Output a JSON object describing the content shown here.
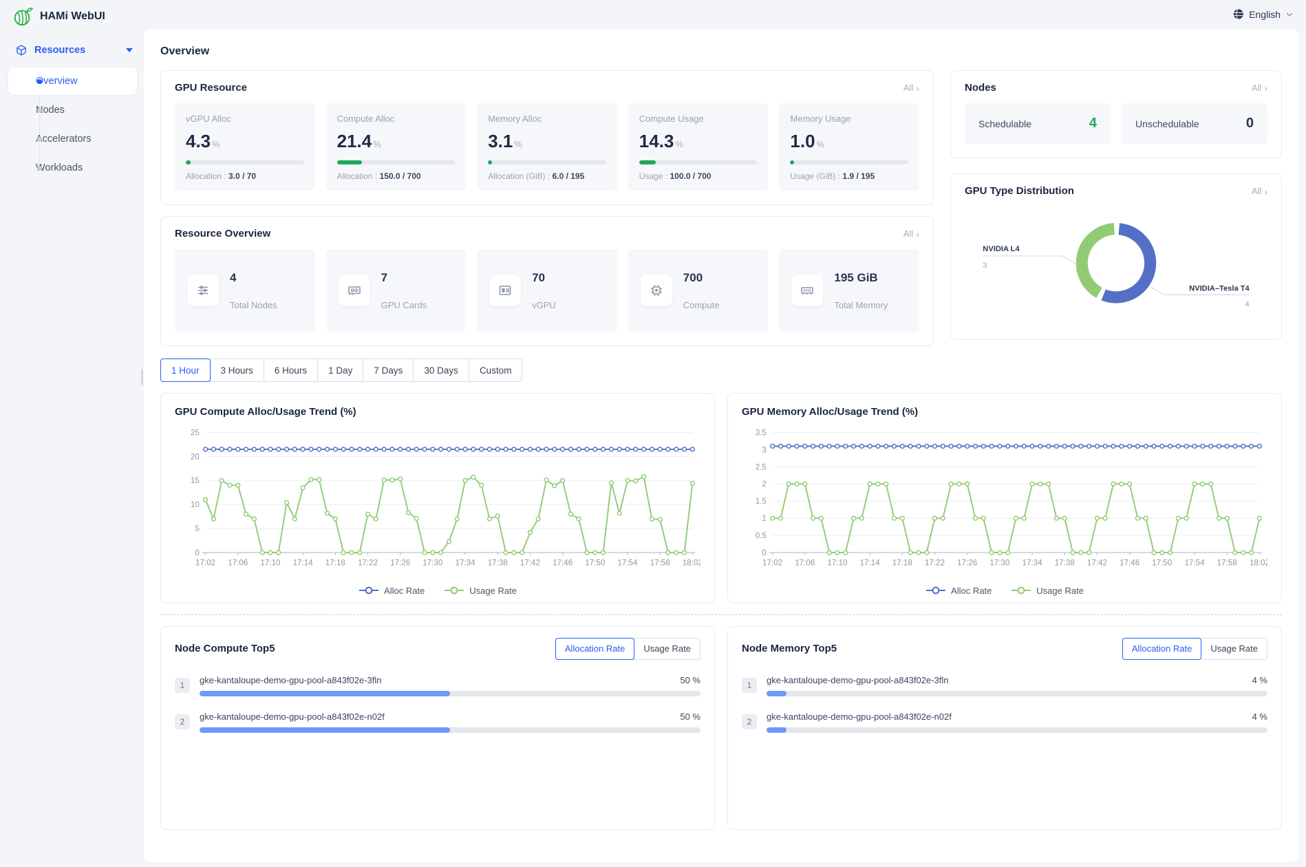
{
  "app": {
    "title": "HAMi WebUI",
    "language": "English"
  },
  "sidebar": {
    "section_label": "Resources",
    "items": [
      {
        "label": "Overview",
        "active": true
      },
      {
        "label": "Nodes",
        "active": false
      },
      {
        "label": "Accelerators",
        "active": false
      },
      {
        "label": "Workloads",
        "active": false
      }
    ]
  },
  "page": {
    "title": "Overview",
    "all_label": "All"
  },
  "gpu_resource": {
    "title": "GPU Resource",
    "cards": [
      {
        "label": "vGPU Alloc",
        "value": "4.3",
        "unit": "%",
        "percent": 4.3,
        "detail_label": "Allocation",
        "detail_value": "3.0 / 70"
      },
      {
        "label": "Compute Alloc",
        "value": "21.4",
        "unit": "%",
        "percent": 21.4,
        "detail_label": "Allocation",
        "detail_value": "150.0 / 700"
      },
      {
        "label": "Memory Alloc",
        "value": "3.1",
        "unit": "%",
        "percent": 3.1,
        "detail_label": "Allocation (GiB)",
        "detail_value": "6.0 / 195"
      },
      {
        "label": "Compute Usage",
        "value": "14.3",
        "unit": "%",
        "percent": 14.3,
        "detail_label": "Usage",
        "detail_value": "100.0 / 700"
      },
      {
        "label": "Memory Usage",
        "value": "1.0",
        "unit": "%",
        "percent": 1.0,
        "detail_label": "Usage (GiB)",
        "detail_value": "1.9 / 195"
      }
    ]
  },
  "nodes_panel": {
    "title": "Nodes",
    "tiles": [
      {
        "label": "Schedulable",
        "value": "4",
        "good": true
      },
      {
        "label": "Unschedulable",
        "value": "0",
        "good": false
      }
    ]
  },
  "resource_overview": {
    "title": "Resource Overview",
    "stats": [
      {
        "value": "4",
        "label": "Total Nodes",
        "icon": "nodes-icon"
      },
      {
        "value": "7",
        "label": "GPU Cards",
        "icon": "gpu-card-icon"
      },
      {
        "value": "70",
        "label": "vGPU",
        "icon": "vgpu-icon"
      },
      {
        "value": "700",
        "label": "Compute",
        "icon": "compute-icon"
      },
      {
        "value": "195 GiB",
        "label": "Total Memory",
        "icon": "memory-icon"
      }
    ]
  },
  "time_tabs": [
    {
      "label": "1 Hour",
      "active": true
    },
    {
      "label": "3 Hours",
      "active": false
    },
    {
      "label": "6 Hours",
      "active": false
    },
    {
      "label": "1 Day",
      "active": false
    },
    {
      "label": "7 Days",
      "active": false
    },
    {
      "label": "30 Days",
      "active": false
    },
    {
      "label": "Custom",
      "active": false
    }
  ],
  "top5": {
    "toggle": [
      "Allocation Rate",
      "Usage Rate"
    ],
    "active_toggle": 0,
    "panels": [
      {
        "title": "Node Compute Top5",
        "rows": [
          {
            "rank": "1",
            "name": "gke-kantaloupe-demo-gpu-pool-a843f02e-3fln",
            "percent_label": "50 %",
            "percent": 50
          },
          {
            "rank": "2",
            "name": "gke-kantaloupe-demo-gpu-pool-a843f02e-n02f",
            "percent_label": "50 %",
            "percent": 50
          }
        ]
      },
      {
        "title": "Node Memory Top5",
        "rows": [
          {
            "rank": "1",
            "name": "gke-kantaloupe-demo-gpu-pool-a843f02e-3fln",
            "percent_label": "4 %",
            "percent": 4
          },
          {
            "rank": "2",
            "name": "gke-kantaloupe-demo-gpu-pool-a843f02e-n02f",
            "percent_label": "4 %",
            "percent": 4
          }
        ]
      }
    ]
  },
  "chart_data": [
    {
      "type": "pie",
      "donut": true,
      "title": "GPU Type Distribution",
      "labels": [
        "NVIDIA L4",
        "NVIDIA–Tesla T4"
      ],
      "values": [
        3,
        4
      ],
      "colors": [
        "#91cc75",
        "#5470c6"
      ],
      "legend_position": "none"
    },
    {
      "type": "line",
      "title": "GPU Compute Alloc/Usage Trend (%)",
      "ylim": [
        0,
        25
      ],
      "yticks": [
        0,
        5,
        10,
        15,
        20,
        25
      ],
      "grid": true,
      "legend_position": "bottom",
      "x_label_every": 4,
      "x": [
        "17:02",
        "17:03",
        "17:04",
        "17:05",
        "17:06",
        "17:07",
        "17:08",
        "17:09",
        "17:10",
        "17:11",
        "17:12",
        "17:13",
        "17:14",
        "17:15",
        "17:16",
        "17:17",
        "17:18",
        "17:19",
        "17:20",
        "17:21",
        "17:22",
        "17:23",
        "17:24",
        "17:25",
        "17:26",
        "17:27",
        "17:28",
        "17:29",
        "17:30",
        "17:31",
        "17:32",
        "17:33",
        "17:34",
        "17:35",
        "17:36",
        "17:37",
        "17:38",
        "17:39",
        "17:40",
        "17:41",
        "17:42",
        "17:43",
        "17:44",
        "17:45",
        "17:46",
        "17:47",
        "17:48",
        "17:49",
        "17:50",
        "17:51",
        "17:52",
        "17:53",
        "17:54",
        "17:55",
        "17:56",
        "17:57",
        "17:58",
        "17:59",
        "18:00",
        "18:01",
        "18:02"
      ],
      "series": [
        {
          "name": "Alloc Rate",
          "color": "#5470c6",
          "constant": 21.5
        },
        {
          "name": "Usage Rate",
          "color": "#91cc75",
          "values": [
            11,
            7,
            15,
            14,
            14,
            8,
            7,
            0,
            0,
            0,
            10.4,
            7,
            13.5,
            15.2,
            15.2,
            8.2,
            7,
            0,
            0,
            0,
            8,
            7,
            15.1,
            15.1,
            15.3,
            8.3,
            7.1,
            0,
            0,
            0,
            2.3,
            7,
            15,
            15.7,
            14,
            7,
            7.6,
            0,
            0,
            0,
            4.2,
            7,
            15.1,
            13.9,
            15,
            8,
            7,
            0,
            0,
            0,
            14.5,
            8.2,
            15,
            14.9,
            15.8,
            7,
            6.9,
            0,
            0,
            0,
            14.4
          ]
        }
      ]
    },
    {
      "type": "line",
      "title": "GPU Memory Alloc/Usage Trend (%)",
      "ylim": [
        0,
        3.5
      ],
      "yticks": [
        0,
        0.5,
        1,
        1.5,
        2,
        2.5,
        3,
        3.5
      ],
      "grid": true,
      "legend_position": "bottom",
      "x_label_every": 4,
      "x": [
        "17:02",
        "17:03",
        "17:04",
        "17:05",
        "17:06",
        "17:07",
        "17:08",
        "17:09",
        "17:10",
        "17:11",
        "17:12",
        "17:13",
        "17:14",
        "17:15",
        "17:16",
        "17:17",
        "17:18",
        "17:19",
        "17:20",
        "17:21",
        "17:22",
        "17:23",
        "17:24",
        "17:25",
        "17:26",
        "17:27",
        "17:28",
        "17:29",
        "17:30",
        "17:31",
        "17:32",
        "17:33",
        "17:34",
        "17:35",
        "17:36",
        "17:37",
        "17:38",
        "17:39",
        "17:40",
        "17:41",
        "17:42",
        "17:43",
        "17:44",
        "17:45",
        "17:46",
        "17:47",
        "17:48",
        "17:49",
        "17:50",
        "17:51",
        "17:52",
        "17:53",
        "17:54",
        "17:55",
        "17:56",
        "17:57",
        "17:58",
        "17:59",
        "18:00",
        "18:01",
        "18:02"
      ],
      "series": [
        {
          "name": "Alloc Rate",
          "color": "#5470c6",
          "constant": 3.1
        },
        {
          "name": "Usage Rate",
          "color": "#91cc75",
          "values": [
            1,
            1,
            2,
            2,
            2,
            1,
            1,
            0,
            0,
            0,
            1,
            1,
            2,
            2,
            2,
            1,
            1,
            0,
            0,
            0,
            1,
            1,
            2,
            2,
            2,
            1,
            1,
            0,
            0,
            0,
            1,
            1,
            2,
            2,
            2,
            1,
            1,
            0,
            0,
            0,
            1,
            1,
            2,
            2,
            2,
            1,
            1,
            0,
            0,
            0,
            1,
            1,
            2,
            2,
            2,
            1,
            1,
            0,
            0,
            0,
            1
          ]
        }
      ]
    }
  ]
}
